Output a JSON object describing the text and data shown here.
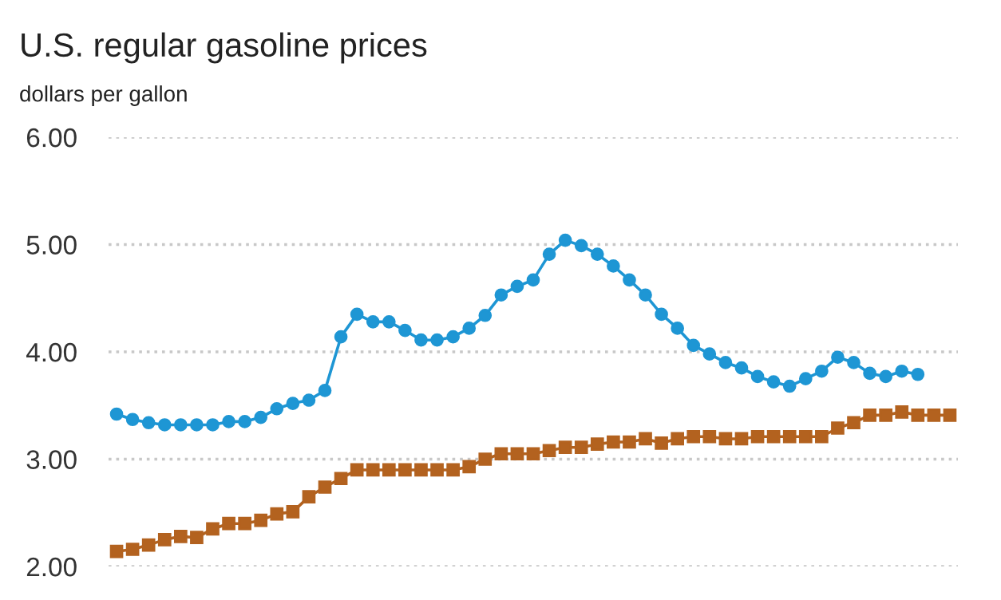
{
  "chart_data": {
    "type": "line",
    "title": "U.S. regular gasoline prices",
    "subtitle": "dollars per gallon",
    "categories": [
      null,
      null,
      null,
      null,
      null,
      null,
      null,
      null,
      null,
      null,
      null,
      null,
      null,
      null,
      null,
      null,
      null,
      null,
      null,
      null,
      null,
      null,
      null,
      null,
      null,
      null,
      null,
      null,
      null,
      null,
      null,
      null,
      null,
      null,
      null,
      null,
      null,
      null,
      null,
      null,
      null,
      null,
      null,
      null,
      null,
      null,
      null,
      null,
      null,
      null,
      null,
      null,
      null
    ],
    "series": [
      {
        "color": "#1e96d4",
        "marker": "circle",
        "values": [
          3.42,
          3.37,
          3.34,
          3.32,
          3.32,
          3.32,
          3.32,
          3.35,
          3.35,
          3.39,
          3.47,
          3.52,
          3.55,
          3.64,
          4.14,
          4.35,
          4.28,
          4.28,
          4.2,
          4.11,
          4.11,
          4.14,
          4.22,
          4.34,
          4.53,
          4.61,
          4.67,
          4.91,
          5.04,
          4.99,
          4.91,
          4.8,
          4.67,
          4.53,
          4.35,
          4.22,
          4.06,
          3.98,
          3.9,
          3.85,
          3.77,
          3.72,
          3.68,
          3.75,
          3.82,
          3.95,
          3.9,
          3.8,
          3.77,
          3.82,
          3.79,
          null,
          null
        ]
      },
      {
        "color": "#b3621f",
        "marker": "square",
        "values": [
          2.14,
          2.16,
          2.2,
          2.25,
          2.28,
          2.27,
          2.35,
          2.4,
          2.4,
          2.43,
          2.49,
          2.51,
          2.65,
          2.74,
          2.82,
          2.9,
          2.9,
          2.9,
          2.9,
          2.9,
          2.9,
          2.9,
          2.93,
          3.0,
          3.05,
          3.05,
          3.05,
          3.08,
          3.11,
          3.11,
          3.14,
          3.16,
          3.16,
          3.19,
          3.15,
          3.19,
          3.21,
          3.21,
          3.19,
          3.19,
          3.21,
          3.21,
          3.21,
          3.21,
          3.21,
          3.29,
          3.34,
          3.41,
          3.41,
          3.44,
          3.41,
          3.41,
          3.41
        ]
      }
    ],
    "ylim": [
      2.0,
      6.0
    ],
    "yticks": [
      {
        "value": 2,
        "label": "2.00"
      },
      {
        "value": 3,
        "label": "3.00"
      },
      {
        "value": 4,
        "label": "4.00"
      },
      {
        "value": 5,
        "label": "5.00"
      },
      {
        "value": 6,
        "label": "6.00"
      }
    ],
    "grid": "y",
    "tick_labels": "y"
  }
}
